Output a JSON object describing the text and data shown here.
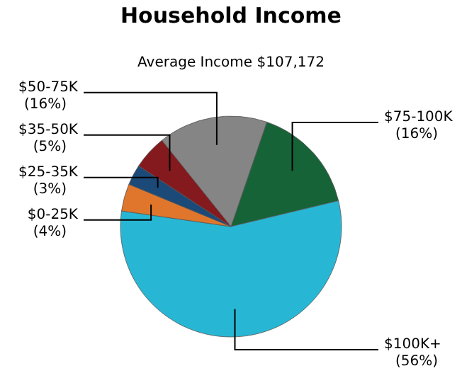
{
  "chart_data": {
    "type": "pie",
    "title": "Household Income",
    "subtitle": "Average Income  $107,172",
    "categories": [
      "$75-100K",
      "$100K+",
      "$0-25K",
      "$25-35K",
      "$35-50K",
      "$50-75K"
    ],
    "values": [
      16,
      56,
      4,
      3,
      5,
      16
    ],
    "value_labels": [
      "(16%)",
      "(56%)",
      "(4%)",
      "(3%)",
      "(5%)",
      "(16%)"
    ],
    "colors": [
      "#176338",
      "#27b7d4",
      "#e0762c",
      "#1b4a78",
      "#841a1e",
      "#858585"
    ]
  }
}
